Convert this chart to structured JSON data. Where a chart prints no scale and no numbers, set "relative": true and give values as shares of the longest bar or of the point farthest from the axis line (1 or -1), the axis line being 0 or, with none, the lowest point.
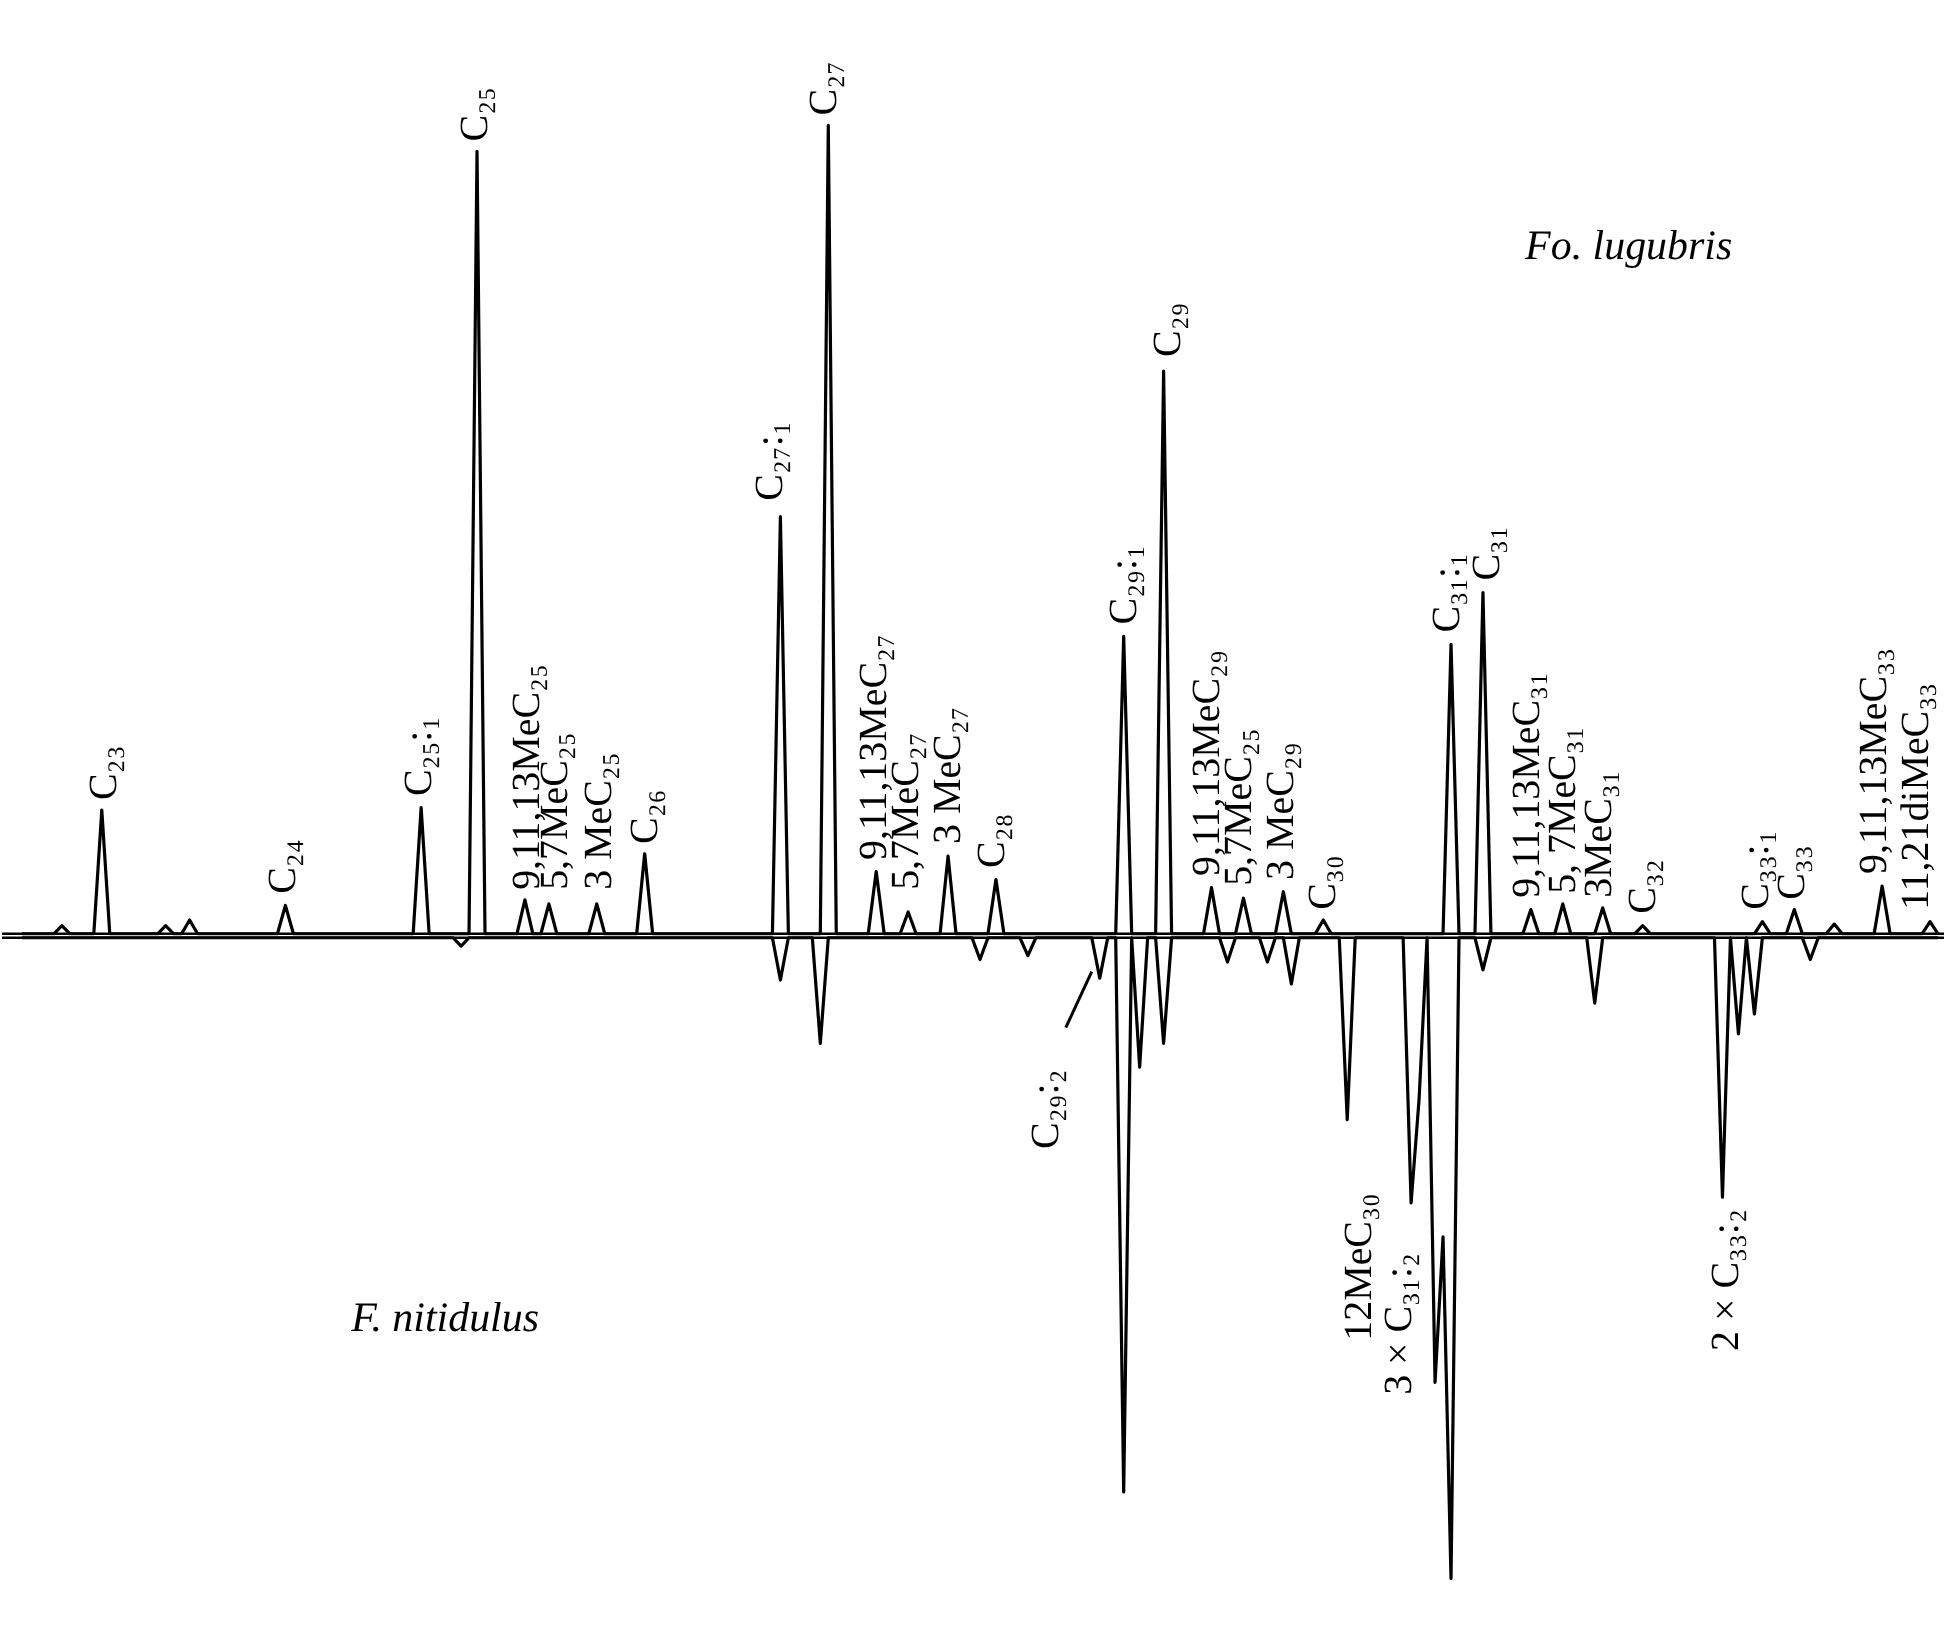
{
  "chart_data": [
    {
      "type": "line",
      "relative": true,
      "categories": [
        null,
        null,
        null,
        null,
        null,
        null,
        null,
        null,
        null,
        null,
        null,
        null,
        null,
        null,
        null,
        null,
        null,
        null,
        null,
        null,
        null,
        null,
        null,
        null,
        null,
        null,
        null,
        null,
        null,
        null,
        null,
        null,
        null,
        null,
        null,
        null,
        null,
        null,
        null,
        null,
        null,
        null,
        null,
        null,
        null,
        null,
        null,
        null,
        null,
        null,
        null,
        null,
        null,
        null,
        null,
        null,
        null,
        null,
        null,
        null,
        null,
        null,
        null,
        null,
        null,
        null,
        null,
        null,
        null,
        null,
        null,
        null,
        null,
        null,
        null,
        null,
        null,
        null,
        null,
        null,
        null,
        null,
        null,
        null,
        null,
        null,
        null,
        null,
        null,
        null,
        null,
        null,
        null,
        null,
        null,
        null,
        null,
        null,
        null,
        null,
        null,
        null,
        null,
        null,
        null,
        null,
        null,
        null,
        null,
        null,
        null,
        null,
        null,
        null,
        null,
        null,
        null,
        null,
        null,
        null,
        null,
        null,
        null,
        null,
        null,
        null,
        null,
        null,
        null,
        null,
        null,
        null,
        null,
        null,
        null,
        null,
        null,
        null,
        null,
        null,
        null,
        null,
        null,
        null,
        null,
        null,
        null,
        null,
        null,
        null,
        null,
        null,
        null,
        null,
        null,
        null,
        null,
        null,
        null,
        null,
        null,
        null,
        null,
        null,
        null,
        null,
        null,
        null,
        null,
        null,
        null,
        null,
        null,
        null,
        null,
        null,
        null,
        null,
        null,
        null,
        null,
        null,
        null,
        null,
        null,
        null,
        null,
        null,
        null,
        null,
        null,
        null,
        null,
        null,
        null,
        null,
        null,
        null,
        null,
        null,
        null,
        null,
        null,
        null,
        null,
        null,
        null,
        null,
        null,
        null,
        null,
        null,
        null,
        null,
        null,
        null,
        null,
        null,
        null,
        null,
        null,
        null,
        null,
        null,
        null,
        null,
        null,
        null,
        null,
        null,
        null,
        null,
        null,
        null,
        null,
        null,
        null,
        null,
        null,
        null,
        null
      ],
      "series": [
        {
          "color": "#000000",
          "values": [
            0,
            0,
            0,
            0,
            0,
            0.01,
            0,
            0,
            0,
            0,
            0.153,
            0,
            0,
            0,
            0,
            0,
            0,
            0,
            0.01,
            0,
            0,
            0.017,
            0,
            0,
            0,
            0,
            0,
            0,
            0,
            0,
            0,
            0,
            0,
            0.035,
            0,
            0,
            0,
            0,
            0,
            0,
            0,
            0,
            0,
            0,
            0,
            0,
            0,
            0,
            0,
            0,
            0.156,
            0,
            0,
            0,
            0,
            0,
            0,
            0.968,
            0,
            0,
            0,
            0,
            0,
            0.042,
            0,
            0,
            0.037,
            0,
            0,
            0,
            0,
            0,
            0.037,
            0,
            0,
            0,
            0,
            0,
            0.099,
            0,
            0,
            0,
            0,
            0,
            0,
            0,
            0,
            0,
            0,
            0,
            0,
            0,
            0,
            0,
            0,
            0.516,
            0,
            0,
            0,
            0,
            0,
            1.0,
            0,
            0,
            0,
            0,
            0,
            0.077,
            0,
            0,
            0,
            0.027,
            0,
            0,
            0,
            0,
            0.096,
            0,
            0,
            0,
            0,
            0,
            0.067,
            0,
            0,
            0,
            0,
            0,
            0,
            0,
            0,
            0,
            0,
            0,
            0,
            0,
            0,
            0,
            0.368,
            0,
            0,
            0,
            0,
            0.696,
            0,
            0,
            0,
            0,
            0,
            0.057,
            0,
            0,
            0,
            0.044,
            0,
            0,
            0,
            0,
            0.052,
            0,
            0,
            0,
            0,
            0.017,
            0,
            0,
            0,
            0,
            0,
            0,
            0,
            0,
            0,
            0,
            0,
            0,
            0,
            0,
            0,
            0.358,
            0,
            0,
            0,
            0.422,
            0,
            0,
            0,
            0,
            0,
            0.03,
            0,
            0,
            0,
            0.037,
            0,
            0,
            0,
            0,
            0.032,
            0,
            0,
            0,
            0,
            0.01,
            0,
            0,
            0,
            0,
            0,
            0,
            0,
            0,
            0,
            0,
            0,
            0,
            0,
            0,
            0.015,
            0,
            0,
            0,
            0.03,
            0,
            0,
            0,
            0,
            0.012,
            0,
            0,
            0,
            0,
            0,
            0.059,
            0,
            0,
            0,
            0,
            0,
            0.015,
            0
          ]
        }
      ],
      "annotations": [
        "C₂₃",
        "C₂₄",
        "C₂₅:₁",
        "C₂₅",
        "9,11,13MeC₂₅",
        "5,7MeC₂₅",
        "3 MeC₂₅",
        "C₂₆",
        "C₂₇:₁",
        "C₂₇",
        "9,11,13MeC₂₇",
        "5,7MeC₂₇",
        "3 MeC₂₇",
        "C₂₈",
        "C₂₉:₁",
        "C₂₉",
        "9,11,13MeC₂₉",
        "5,7MeC₂₅",
        "3 MeC₂₉",
        "C₃₀",
        "C₃₁:₁",
        "C₃₁",
        "9,11,13MeC₃₁",
        "5, 7MeC₃₁",
        "3MeC₃₁",
        "C₃₂",
        "C₃₃:₁",
        "C₃₃",
        "9,11,13MeC₃₃",
        "11,21diMeC₃₃",
        "Fo. lugubris"
      ]
    },
    {
      "type": "line",
      "relative": true,
      "categories": [
        null,
        null,
        null,
        null,
        null,
        null,
        null,
        null,
        null,
        null,
        null,
        null,
        null,
        null,
        null,
        null,
        null,
        null,
        null,
        null,
        null,
        null,
        null,
        null,
        null,
        null,
        null,
        null,
        null,
        null,
        null,
        null,
        null,
        null,
        null,
        null,
        null,
        null,
        null,
        null,
        null,
        null,
        null,
        null,
        null,
        null,
        null,
        null,
        null,
        null,
        null,
        null,
        null,
        null,
        null,
        null,
        null,
        null,
        null,
        null,
        null,
        null,
        null,
        null,
        null,
        null,
        null,
        null,
        null,
        null,
        null,
        null,
        null,
        null,
        null,
        null,
        null,
        null,
        null,
        null,
        null,
        null,
        null,
        null,
        null,
        null,
        null,
        null,
        null,
        null,
        null,
        null,
        null,
        null,
        null,
        null,
        null,
        null,
        null,
        null,
        null,
        null,
        null,
        null,
        null,
        null,
        null,
        null,
        null,
        null,
        null,
        null,
        null,
        null,
        null,
        null,
        null,
        null,
        null,
        null,
        null,
        null,
        null,
        null,
        null,
        null,
        null,
        null,
        null,
        null,
        null,
        null,
        null,
        null,
        null,
        null,
        null,
        null,
        null,
        null,
        null,
        null,
        null,
        null,
        null,
        null,
        null,
        null,
        null,
        null,
        null,
        null,
        null,
        null,
        null,
        null,
        null,
        null,
        null,
        null,
        null,
        null,
        null,
        null,
        null,
        null,
        null,
        null,
        null,
        null,
        null,
        null,
        null,
        null,
        null,
        null,
        null,
        null,
        null,
        null,
        null,
        null,
        null,
        null,
        null,
        null,
        null,
        null,
        null,
        null,
        null,
        null,
        null,
        null,
        null,
        null,
        null,
        null,
        null,
        null,
        null,
        null,
        null,
        null,
        null,
        null,
        null,
        null,
        null,
        null,
        null,
        null,
        null,
        null,
        null,
        null,
        null,
        null,
        null,
        null,
        null,
        null,
        null,
        null,
        null,
        null,
        null,
        null,
        null,
        null,
        null,
        null,
        null,
        null,
        null,
        null,
        null,
        null,
        null,
        null,
        null
      ],
      "series": [
        {
          "color": "#000000",
          "values": [
            0,
            0,
            0,
            0,
            0,
            0,
            0,
            0,
            0,
            0,
            0,
            0,
            0,
            0,
            0,
            0,
            0,
            0,
            0,
            0,
            0,
            0,
            0,
            0,
            0,
            0,
            0,
            0,
            0,
            0,
            0,
            0,
            0,
            0,
            0,
            0,
            0,
            0,
            0,
            0,
            0,
            0,
            0,
            0,
            0,
            0,
            0,
            0,
            0,
            0,
            0,
            0,
            0,
            0,
            0,
            -0.013,
            0,
            0,
            0,
            0,
            0,
            0,
            0,
            0,
            0,
            0,
            0,
            0,
            0,
            0,
            0,
            0,
            0,
            0,
            0,
            0,
            0,
            0,
            0,
            0,
            0,
            0,
            0,
            0,
            0,
            0,
            0,
            0,
            0,
            0,
            0,
            0,
            0,
            0,
            0,
            -0.066,
            0,
            0,
            0,
            0,
            -0.165,
            0,
            0,
            0,
            0,
            0,
            0,
            0,
            0,
            0,
            0,
            0,
            0,
            0,
            0,
            0,
            0,
            0,
            0,
            0,
            -0.034,
            0,
            0,
            0,
            0,
            0,
            -0.028,
            0,
            0,
            0,
            0,
            0,
            0,
            0,
            0,
            -0.063,
            0,
            0,
            -0.865,
            0,
            -0.202,
            0,
            0,
            -0.165,
            0,
            0,
            0,
            0,
            0,
            0,
            0,
            -0.038,
            0,
            0,
            0,
            0,
            -0.038,
            0,
            0,
            -0.072,
            0,
            0,
            0,
            0,
            0,
            0,
            -0.284,
            0,
            0,
            0,
            0,
            0,
            0,
            0,
            -0.414,
            -0.252,
            0,
            -0.694,
            -0.467,
            -1,
            0,
            0,
            0,
            -0.05,
            0,
            0,
            0,
            0,
            0,
            0,
            0,
            0,
            0,
            0,
            0,
            0,
            0,
            -0.102,
            0,
            0,
            0,
            0,
            0,
            0,
            0,
            0,
            0,
            0,
            0,
            0,
            0,
            0,
            0,
            -0.405,
            0,
            -0.15,
            0,
            -0.119,
            0,
            0,
            0,
            0,
            0,
            0,
            -0.034,
            0,
            0,
            0,
            0,
            0,
            0,
            0,
            0,
            0,
            0,
            0,
            0,
            0,
            0,
            0,
            0
          ]
        }
      ],
      "annotations": [
        "C₂₉:₂",
        "12MeC₃₀",
        "3 × C₃₁:₂",
        "2 × C₃₃:₂",
        "F. nitidulus"
      ]
    }
  ]
}
